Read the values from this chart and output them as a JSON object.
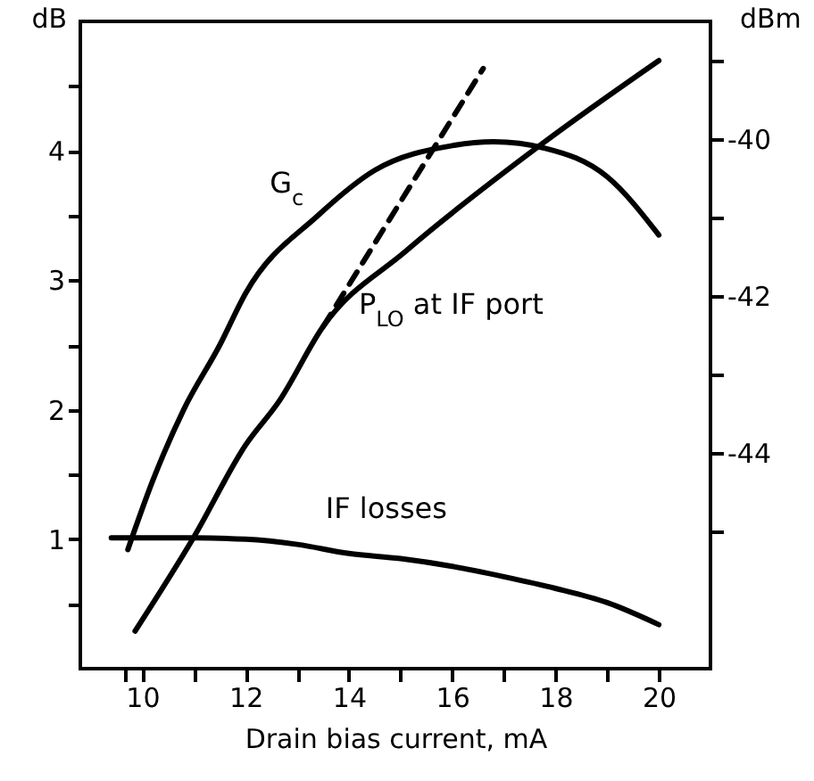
{
  "chart_data": {
    "type": "line",
    "xlabel": "Drain bias current, mA",
    "ylabel": "dB",
    "y2label": "dBm",
    "xlim": [
      8.8,
      21
    ],
    "xticks": [
      {
        "value": 9.66,
        "label": null
      },
      10,
      {
        "value": 11,
        "label": null
      },
      12,
      {
        "value": 13,
        "label": null
      },
      14,
      {
        "value": 15,
        "label": null
      },
      16,
      {
        "value": 17,
        "label": null
      },
      18,
      {
        "value": 19,
        "label": null
      },
      20
    ],
    "ylim": [
      0,
      5
    ],
    "yticks": [
      {
        "value": 0.5,
        "label": null
      },
      1,
      {
        "value": 1.5,
        "label": null
      },
      2,
      {
        "value": 2.5,
        "label": null
      },
      3,
      {
        "value": 3.5,
        "label": null
      },
      4,
      {
        "value": 4.5,
        "label": null
      }
    ],
    "y2lim": [
      -46.75,
      -38.5
    ],
    "y2ticks": [
      {
        "value": -45,
        "label": null
      },
      -44,
      {
        "value": -43,
        "label": null
      },
      -42,
      {
        "value": -41,
        "label": null
      },
      -40,
      {
        "value": -39,
        "label": null
      }
    ],
    "series": [
      {
        "name": "G$_{c}$",
        "color": "#000000",
        "x": [
          9.72,
          10.2,
          10.8,
          11.5,
          12.0,
          13.4,
          14.5,
          16,
          16.8,
          17.8,
          19,
          20
        ],
        "values": [
          0.92,
          1.45,
          2.0,
          2.5,
          2.9,
          3.5,
          3.85,
          4.04,
          4.07,
          4.02,
          3.8,
          3.35
        ]
      },
      {
        "name": "IF losses",
        "color": "#000000",
        "x": [
          9.4,
          11,
          12,
          13,
          14,
          15,
          16,
          17,
          18,
          19,
          20
        ],
        "values": [
          1.01,
          1.01,
          1.0,
          0.96,
          0.89,
          0.85,
          0.79,
          0.71,
          0.62,
          0.51,
          0.34
        ]
      },
      {
        "name": "P$_{LO}$ at IF port",
        "color": "#000000",
        "axis": "y2",
        "x": [
          9.86,
          11,
          12,
          12.65,
          13.5,
          15.1,
          17.76,
          20
        ],
        "values": [
          -46.27,
          -45.07,
          -43.9,
          -43.34,
          -42.39,
          -41.43,
          -40.05,
          -39.0
        ]
      },
      {
        "color": "#000000",
        "axis": "y2",
        "line_style": "dashed",
        "x": [
          13.5,
          16.6
        ],
        "values": [
          -42.39,
          -39.1
        ]
      }
    ]
  }
}
